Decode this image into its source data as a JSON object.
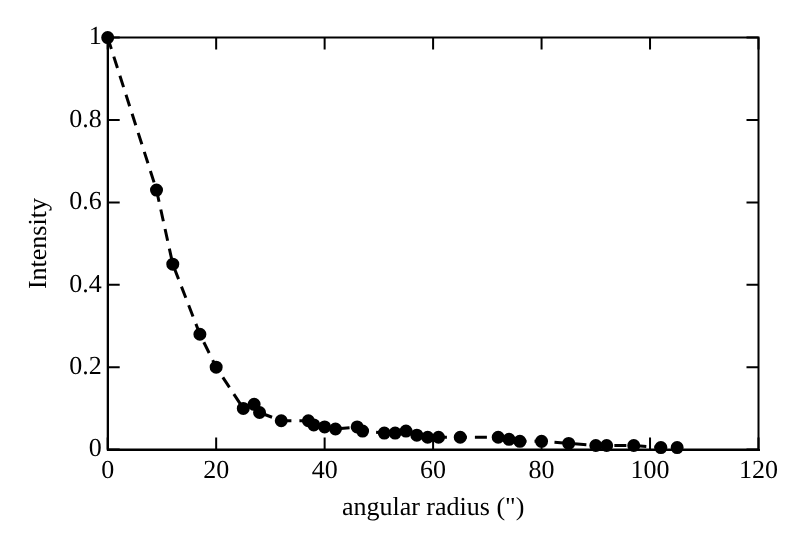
{
  "chart_data": {
    "type": "line",
    "xlabel": "angular radius (\")",
    "ylabel": "Intensity",
    "x": [
      0,
      9,
      12,
      17,
      20,
      25,
      27,
      28,
      32,
      37,
      38,
      40,
      42,
      46,
      47,
      51,
      53,
      55,
      57,
      59,
      61,
      65,
      72,
      74,
      76,
      80,
      85,
      90,
      92,
      97,
      102,
      105
    ],
    "series": [
      {
        "color": "#000000",
        "values": [
          1,
          0.63,
          0.45,
          0.28,
          0.2,
          0.1,
          0.11,
          0.09,
          0.07,
          0.07,
          0.06,
          0.055,
          0.05,
          0.055,
          0.045,
          0.04,
          0.04,
          0.045,
          0.035,
          0.03,
          0.03,
          0.03,
          0.03,
          0.025,
          0.02,
          0.02,
          0.015,
          0.01,
          0.01,
          0.01,
          0.005,
          0.005
        ]
      }
    ],
    "xlim": [
      0,
      120
    ],
    "xticks": [
      0,
      20,
      40,
      60,
      80,
      100,
      120
    ],
    "ylim": [
      0,
      1
    ],
    "yticks": [
      0,
      0.2,
      0.4,
      0.6,
      0.8,
      1
    ],
    "marker": "circle",
    "line_style": "dashed",
    "grid": false,
    "legend": false
  }
}
